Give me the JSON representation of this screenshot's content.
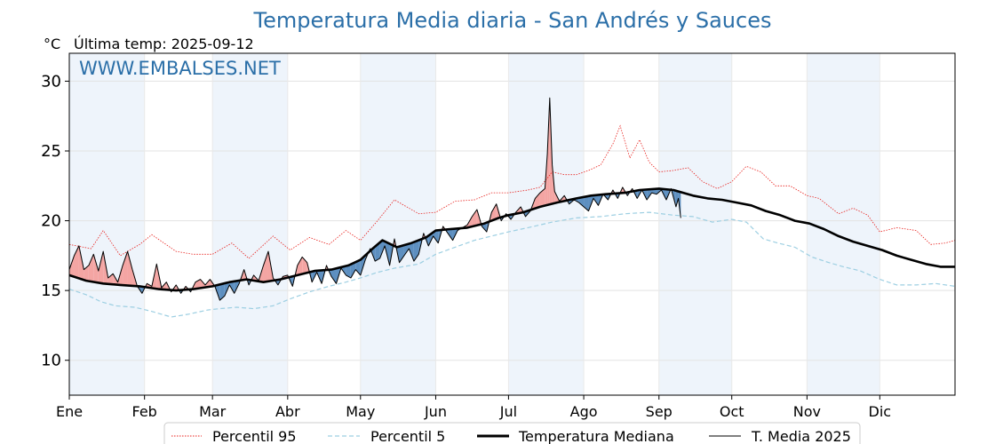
{
  "title": "Temperatura Media diaria - San Andrés y Sauces",
  "unit_label": "°C",
  "last_temp_label": "Última temp: 2025-09-12",
  "watermark": "WWW.EMBALSES.NET",
  "colors": {
    "title": "#2b6fa8",
    "p95": "#e8211d",
    "p5": "#9dcfe2",
    "median": "#000000",
    "current": "#000000",
    "above_fill": "#f4a5a3",
    "below_fill": "#5d8fc0",
    "band": "#eef4fb"
  },
  "chart_data": {
    "type": "line",
    "x_type": "day_of_year",
    "x_range": [
      1,
      366
    ],
    "ylim": [
      7.5,
      32
    ],
    "yticks": [
      10,
      15,
      20,
      25,
      30
    ],
    "month_labels": [
      "Ene",
      "Feb",
      "Mar",
      "Abr",
      "May",
      "Jun",
      "Jul",
      "Ago",
      "Sep",
      "Oct",
      "Nov",
      "Dic"
    ],
    "month_start_days": [
      1,
      32,
      60,
      91,
      121,
      152,
      182,
      213,
      244,
      274,
      305,
      335
    ],
    "grid": true,
    "legend_position": "bottom",
    "series": [
      {
        "name": "Percentil 95",
        "style": "dotted",
        "points": [
          [
            1,
            18.3
          ],
          [
            10,
            18.0
          ],
          [
            15,
            19.3
          ],
          [
            22,
            17.5
          ],
          [
            30,
            18.3
          ],
          [
            35,
            19.0
          ],
          [
            45,
            17.8
          ],
          [
            52,
            17.6
          ],
          [
            60,
            17.6
          ],
          [
            68,
            18.4
          ],
          [
            75,
            17.3
          ],
          [
            85,
            18.9
          ],
          [
            92,
            17.9
          ],
          [
            100,
            18.8
          ],
          [
            108,
            18.3
          ],
          [
            115,
            19.3
          ],
          [
            121,
            18.6
          ],
          [
            128,
            20.0
          ],
          [
            135,
            21.5
          ],
          [
            145,
            20.5
          ],
          [
            152,
            20.6
          ],
          [
            160,
            21.4
          ],
          [
            168,
            21.5
          ],
          [
            175,
            22.0
          ],
          [
            182,
            22.0
          ],
          [
            190,
            22.2
          ],
          [
            195,
            22.4
          ],
          [
            200,
            23.5
          ],
          [
            205,
            23.3
          ],
          [
            210,
            23.3
          ],
          [
            215,
            23.6
          ],
          [
            220,
            24.0
          ],
          [
            225,
            25.5
          ],
          [
            228,
            26.8
          ],
          [
            232,
            24.5
          ],
          [
            236,
            25.8
          ],
          [
            240,
            24.2
          ],
          [
            244,
            23.5
          ],
          [
            250,
            23.6
          ],
          [
            256,
            23.8
          ],
          [
            262,
            22.8
          ],
          [
            268,
            22.3
          ],
          [
            274,
            22.8
          ],
          [
            280,
            23.9
          ],
          [
            286,
            23.5
          ],
          [
            292,
            22.5
          ],
          [
            298,
            22.5
          ],
          [
            305,
            21.8
          ],
          [
            310,
            21.6
          ],
          [
            318,
            20.5
          ],
          [
            324,
            20.9
          ],
          [
            330,
            20.4
          ],
          [
            335,
            19.2
          ],
          [
            342,
            19.5
          ],
          [
            350,
            19.3
          ],
          [
            356,
            18.3
          ],
          [
            362,
            18.4
          ],
          [
            366,
            18.6
          ]
        ]
      },
      {
        "name": "Percentil 5",
        "style": "dashed",
        "points": [
          [
            1,
            15.1
          ],
          [
            8,
            14.7
          ],
          [
            14,
            14.2
          ],
          [
            20,
            13.9
          ],
          [
            28,
            13.8
          ],
          [
            35,
            13.5
          ],
          [
            43,
            13.1
          ],
          [
            50,
            13.3
          ],
          [
            58,
            13.6
          ],
          [
            63,
            13.7
          ],
          [
            70,
            13.8
          ],
          [
            77,
            13.7
          ],
          [
            85,
            13.9
          ],
          [
            92,
            14.4
          ],
          [
            100,
            14.9
          ],
          [
            108,
            15.3
          ],
          [
            115,
            15.6
          ],
          [
            121,
            15.9
          ],
          [
            128,
            16.3
          ],
          [
            135,
            16.6
          ],
          [
            145,
            16.9
          ],
          [
            152,
            17.6
          ],
          [
            160,
            18.1
          ],
          [
            168,
            18.6
          ],
          [
            175,
            18.9
          ],
          [
            182,
            19.2
          ],
          [
            190,
            19.5
          ],
          [
            200,
            19.9
          ],
          [
            210,
            20.2
          ],
          [
            220,
            20.3
          ],
          [
            230,
            20.5
          ],
          [
            240,
            20.6
          ],
          [
            250,
            20.4
          ],
          [
            258,
            20.3
          ],
          [
            266,
            19.9
          ],
          [
            274,
            20.1
          ],
          [
            280,
            19.9
          ],
          [
            287,
            18.7
          ],
          [
            293,
            18.4
          ],
          [
            300,
            18.1
          ],
          [
            307,
            17.4
          ],
          [
            314,
            17.0
          ],
          [
            320,
            16.7
          ],
          [
            327,
            16.4
          ],
          [
            335,
            15.8
          ],
          [
            342,
            15.4
          ],
          [
            350,
            15.4
          ],
          [
            358,
            15.5
          ],
          [
            366,
            15.3
          ]
        ]
      },
      {
        "name": "Temperatura Mediana",
        "style": "solid-thick",
        "points": [
          [
            1,
            16.1
          ],
          [
            8,
            15.7
          ],
          [
            15,
            15.5
          ],
          [
            22,
            15.4
          ],
          [
            30,
            15.3
          ],
          [
            38,
            15.1
          ],
          [
            45,
            15.0
          ],
          [
            52,
            15.1
          ],
          [
            60,
            15.3
          ],
          [
            67,
            15.6
          ],
          [
            74,
            15.8
          ],
          [
            81,
            15.6
          ],
          [
            88,
            15.8
          ],
          [
            95,
            16.1
          ],
          [
            102,
            16.4
          ],
          [
            109,
            16.5
          ],
          [
            116,
            16.8
          ],
          [
            121,
            17.2
          ],
          [
            126,
            18.0
          ],
          [
            130,
            18.6
          ],
          [
            136,
            18.1
          ],
          [
            142,
            18.4
          ],
          [
            148,
            18.8
          ],
          [
            152,
            19.3
          ],
          [
            158,
            19.4
          ],
          [
            165,
            19.5
          ],
          [
            172,
            19.8
          ],
          [
            178,
            20.2
          ],
          [
            182,
            20.4
          ],
          [
            188,
            20.6
          ],
          [
            195,
            21.0
          ],
          [
            202,
            21.3
          ],
          [
            210,
            21.6
          ],
          [
            216,
            21.8
          ],
          [
            222,
            21.9
          ],
          [
            230,
            22.0
          ],
          [
            236,
            22.2
          ],
          [
            244,
            22.3
          ],
          [
            250,
            22.2
          ],
          [
            258,
            21.8
          ],
          [
            264,
            21.6
          ],
          [
            270,
            21.5
          ],
          [
            276,
            21.3
          ],
          [
            282,
            21.1
          ],
          [
            288,
            20.7
          ],
          [
            294,
            20.4
          ],
          [
            300,
            20.0
          ],
          [
            306,
            19.8
          ],
          [
            312,
            19.4
          ],
          [
            318,
            18.9
          ],
          [
            324,
            18.5
          ],
          [
            330,
            18.2
          ],
          [
            336,
            17.9
          ],
          [
            342,
            17.5
          ],
          [
            348,
            17.2
          ],
          [
            354,
            16.9
          ],
          [
            360,
            16.7
          ],
          [
            366,
            16.7
          ]
        ]
      },
      {
        "name": "T. Media 2025",
        "style": "solid-thin",
        "points": [
          [
            1,
            16.5
          ],
          [
            3,
            17.5
          ],
          [
            5,
            18.2
          ],
          [
            7,
            16.5
          ],
          [
            9,
            16.8
          ],
          [
            11,
            17.6
          ],
          [
            13,
            16.4
          ],
          [
            15,
            17.8
          ],
          [
            17,
            15.9
          ],
          [
            19,
            16.2
          ],
          [
            21,
            15.6
          ],
          [
            23,
            16.8
          ],
          [
            25,
            17.8
          ],
          [
            27,
            16.5
          ],
          [
            29,
            15.3
          ],
          [
            31,
            14.8
          ],
          [
            33,
            15.5
          ],
          [
            35,
            15.3
          ],
          [
            37,
            16.9
          ],
          [
            39,
            15.2
          ],
          [
            41,
            15.6
          ],
          [
            43,
            14.9
          ],
          [
            45,
            15.4
          ],
          [
            47,
            14.8
          ],
          [
            49,
            15.3
          ],
          [
            51,
            14.9
          ],
          [
            53,
            15.6
          ],
          [
            55,
            15.8
          ],
          [
            57,
            15.4
          ],
          [
            59,
            15.8
          ],
          [
            61,
            15.3
          ],
          [
            63,
            14.3
          ],
          [
            65,
            14.6
          ],
          [
            67,
            15.4
          ],
          [
            69,
            14.8
          ],
          [
            71,
            15.5
          ],
          [
            73,
            16.5
          ],
          [
            75,
            15.4
          ],
          [
            77,
            16.1
          ],
          [
            79,
            15.7
          ],
          [
            81,
            16.8
          ],
          [
            83,
            17.8
          ],
          [
            85,
            15.9
          ],
          [
            87,
            15.4
          ],
          [
            89,
            16.0
          ],
          [
            91,
            16.1
          ],
          [
            93,
            15.3
          ],
          [
            95,
            16.8
          ],
          [
            97,
            17.4
          ],
          [
            99,
            17.0
          ],
          [
            101,
            15.6
          ],
          [
            103,
            16.3
          ],
          [
            105,
            15.5
          ],
          [
            107,
            16.8
          ],
          [
            109,
            16.0
          ],
          [
            111,
            15.5
          ],
          [
            113,
            16.6
          ],
          [
            115,
            16.1
          ],
          [
            117,
            15.9
          ],
          [
            119,
            16.5
          ],
          [
            121,
            16.1
          ],
          [
            123,
            17.2
          ],
          [
            125,
            18.0
          ],
          [
            127,
            17.1
          ],
          [
            129,
            17.3
          ],
          [
            131,
            18.2
          ],
          [
            133,
            16.8
          ],
          [
            135,
            18.7
          ],
          [
            137,
            17.0
          ],
          [
            139,
            17.5
          ],
          [
            141,
            18.0
          ],
          [
            143,
            17.1
          ],
          [
            145,
            17.6
          ],
          [
            147,
            19.1
          ],
          [
            149,
            18.2
          ],
          [
            151,
            18.9
          ],
          [
            153,
            18.4
          ],
          [
            155,
            19.6
          ],
          [
            157,
            19.1
          ],
          [
            159,
            18.6
          ],
          [
            161,
            19.3
          ],
          [
            163,
            19.5
          ],
          [
            165,
            19.7
          ],
          [
            167,
            20.3
          ],
          [
            169,
            20.8
          ],
          [
            171,
            19.6
          ],
          [
            173,
            19.2
          ],
          [
            175,
            20.6
          ],
          [
            177,
            21.2
          ],
          [
            179,
            20.0
          ],
          [
            181,
            20.5
          ],
          [
            183,
            20.1
          ],
          [
            185,
            20.6
          ],
          [
            187,
            21.0
          ],
          [
            189,
            20.3
          ],
          [
            191,
            20.7
          ],
          [
            193,
            21.6
          ],
          [
            195,
            22.0
          ],
          [
            197,
            22.3
          ],
          [
            198,
            24.8
          ],
          [
            199,
            28.8
          ],
          [
            200,
            24.0
          ],
          [
            201,
            22.1
          ],
          [
            203,
            21.4
          ],
          [
            205,
            21.8
          ],
          [
            207,
            21.2
          ],
          [
            209,
            21.5
          ],
          [
            211,
            21.3
          ],
          [
            213,
            21.0
          ],
          [
            215,
            20.7
          ],
          [
            217,
            21.6
          ],
          [
            219,
            21.1
          ],
          [
            221,
            21.9
          ],
          [
            223,
            21.5
          ],
          [
            225,
            22.2
          ],
          [
            227,
            21.6
          ],
          [
            229,
            22.4
          ],
          [
            231,
            21.8
          ],
          [
            233,
            22.3
          ],
          [
            235,
            21.6
          ],
          [
            237,
            22.2
          ],
          [
            239,
            21.5
          ],
          [
            241,
            22.0
          ],
          [
            243,
            21.9
          ],
          [
            245,
            22.2
          ],
          [
            247,
            21.5
          ],
          [
            249,
            22.3
          ],
          [
            251,
            21.0
          ],
          [
            252,
            21.6
          ],
          [
            253,
            20.2
          ]
        ]
      }
    ]
  },
  "legend": [
    {
      "label": "Percentil 95"
    },
    {
      "label": "Percentil 5"
    },
    {
      "label": "Temperatura Mediana"
    },
    {
      "label": "T. Media 2025"
    }
  ]
}
